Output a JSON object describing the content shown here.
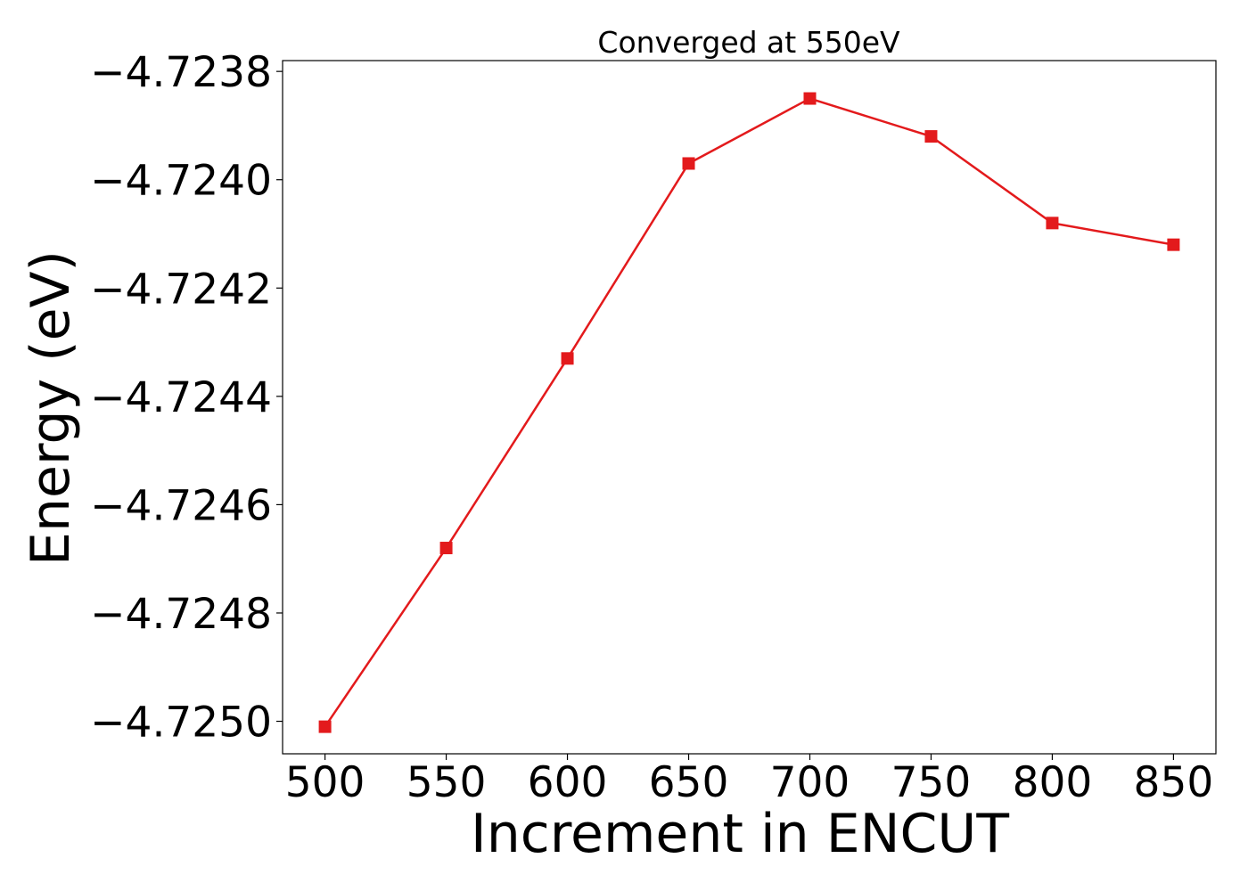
{
  "chart_data": {
    "type": "line",
    "title": "Converged at 550eV",
    "xlabel": "Increment in ENCUT",
    "ylabel": "Energy (eV)",
    "x": [
      500,
      550,
      600,
      650,
      700,
      750,
      800,
      850
    ],
    "series": [
      {
        "values": [
          -4.72501,
          -4.72468,
          -4.72433,
          -4.72397,
          -4.72385,
          -4.72392,
          -4.72408,
          -4.72412
        ],
        "color": "#e31a1c",
        "marker": "square"
      }
    ],
    "xticks": [
      500,
      550,
      600,
      650,
      700,
      750,
      800,
      850
    ],
    "xtick_labels": [
      "500",
      "550",
      "600",
      "650",
      "700",
      "750",
      "800",
      "850"
    ],
    "yticks": [
      -4.725,
      -4.7248,
      -4.7246,
      -4.7244,
      -4.7242,
      -4.724,
      -4.7238
    ],
    "ytick_labels": [
      "−4.7250",
      "−4.7248",
      "−4.7246",
      "−4.7244",
      "−4.7242",
      "−4.7240",
      "−4.7238"
    ],
    "xlim": [
      482.5,
      867.5
    ],
    "ylim": [
      -4.72506,
      -4.72378
    ],
    "grid": false,
    "legend": "none"
  }
}
